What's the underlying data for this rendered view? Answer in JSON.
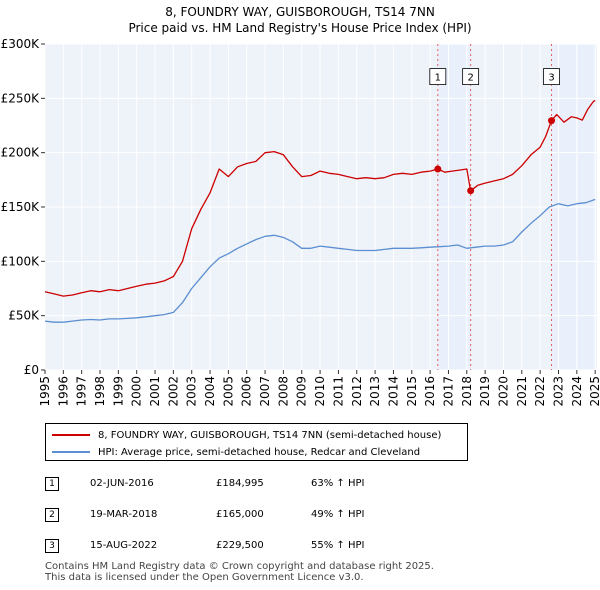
{
  "chart_data": {
    "type": "line",
    "title": "8, FOUNDRY WAY, GUISBOROUGH, TS14 7NN",
    "subtitle": "Price paid vs. HM Land Registry's House Price Index (HPI)",
    "xlabel": "",
    "ylabel": "",
    "xlim": [
      1995.0,
      2025.1
    ],
    "ylim": [
      0,
      300000
    ],
    "x_ticks": [
      "1995",
      "1996",
      "1997",
      "1998",
      "1999",
      "2000",
      "2001",
      "2002",
      "2003",
      "2004",
      "2005",
      "2006",
      "2007",
      "2008",
      "2009",
      "2010",
      "2011",
      "2012",
      "2013",
      "2014",
      "2015",
      "2016",
      "2017",
      "2018",
      "2019",
      "2020",
      "2021",
      "2022",
      "2023",
      "2024",
      "2025"
    ],
    "y_ticks": [
      {
        "value": 0,
        "label": "£0"
      },
      {
        "value": 50000,
        "label": "£50K"
      },
      {
        "value": 100000,
        "label": "£100K"
      },
      {
        "value": 150000,
        "label": "£150K"
      },
      {
        "value": 200000,
        "label": "£200K"
      },
      {
        "value": 250000,
        "label": "£250K"
      },
      {
        "value": 300000,
        "label": "£300K"
      }
    ],
    "grid": true,
    "series": [
      {
        "name": "8, FOUNDRY WAY, GUISBOROUGH, TS14 7NN (semi-detached house)",
        "color": "#cc0000",
        "x": [
          1995.0,
          1995.5,
          1996.0,
          1996.5,
          1997.0,
          1997.5,
          1998.0,
          1998.5,
          1999.0,
          1999.5,
          2000.0,
          2000.5,
          2001.0,
          2001.5,
          2002.0,
          2002.5,
          2003.0,
          2003.5,
          2004.0,
          2004.5,
          2005.0,
          2005.5,
          2006.0,
          2006.5,
          2007.0,
          2007.5,
          2008.0,
          2008.5,
          2009.0,
          2009.5,
          2010.0,
          2010.5,
          2011.0,
          2011.5,
          2012.0,
          2012.5,
          2013.0,
          2013.5,
          2014.0,
          2014.5,
          2015.0,
          2015.5,
          2016.0,
          2016.42,
          2016.8,
          2017.2,
          2017.6,
          2018.0,
          2018.21,
          2018.6,
          2019.0,
          2019.5,
          2020.0,
          2020.5,
          2021.0,
          2021.5,
          2022.0,
          2022.3,
          2022.62,
          2022.9,
          2023.3,
          2023.7,
          2024.0,
          2024.3,
          2024.6,
          2024.9,
          2025.0
        ],
        "values": [
          72000,
          70000,
          68000,
          69000,
          71000,
          73000,
          72000,
          74000,
          73000,
          75000,
          77000,
          79000,
          80000,
          82000,
          86000,
          100000,
          130000,
          148000,
          163000,
          185000,
          178000,
          187000,
          190000,
          192000,
          200000,
          201000,
          198000,
          187000,
          178000,
          179000,
          183000,
          181000,
          180000,
          178000,
          176000,
          177000,
          176000,
          177000,
          180000,
          181000,
          180000,
          182000,
          183000,
          184995,
          182000,
          183000,
          184000,
          185000,
          165000,
          170000,
          172000,
          174000,
          176000,
          180000,
          188000,
          198000,
          205000,
          215000,
          229500,
          235000,
          228000,
          233000,
          232000,
          230000,
          240000,
          247000,
          248000
        ]
      },
      {
        "name": "HPI: Average price, semi-detached house, Redcar and Cleveland",
        "color": "#5b8fd1",
        "x": [
          1995.0,
          1995.5,
          1996.0,
          1996.5,
          1997.0,
          1997.5,
          1998.0,
          1998.5,
          1999.0,
          1999.5,
          2000.0,
          2000.5,
          2001.0,
          2001.5,
          2002.0,
          2002.5,
          2003.0,
          2003.5,
          2004.0,
          2004.5,
          2005.0,
          2005.5,
          2006.0,
          2006.5,
          2007.0,
          2007.5,
          2008.0,
          2008.5,
          2009.0,
          2009.5,
          2010.0,
          2010.5,
          2011.0,
          2011.5,
          2012.0,
          2012.5,
          2013.0,
          2013.5,
          2014.0,
          2014.5,
          2015.0,
          2015.5,
          2016.0,
          2016.5,
          2017.0,
          2017.5,
          2018.0,
          2018.5,
          2019.0,
          2019.5,
          2020.0,
          2020.5,
          2021.0,
          2021.5,
          2022.0,
          2022.5,
          2023.0,
          2023.5,
          2024.0,
          2024.5,
          2025.0
        ],
        "values": [
          45000,
          44000,
          44000,
          45000,
          46000,
          46500,
          46000,
          47000,
          47000,
          47500,
          48000,
          49000,
          50000,
          51000,
          53000,
          62000,
          75000,
          85000,
          95000,
          103000,
          107000,
          112000,
          116000,
          120000,
          123000,
          124000,
          122000,
          118000,
          112000,
          112000,
          114000,
          113000,
          112000,
          111000,
          110000,
          110000,
          110000,
          111000,
          112000,
          112000,
          112000,
          112500,
          113000,
          113500,
          114000,
          115000,
          112000,
          113000,
          114000,
          114000,
          115000,
          118000,
          127000,
          135000,
          142000,
          150000,
          153000,
          151000,
          153000,
          154000,
          157000
        ]
      }
    ],
    "transactions": [
      {
        "label": "1",
        "date": "02-JUN-2016",
        "x": 2016.42,
        "price": "£184,995",
        "value": 184995,
        "hpi_change": "63% ↑ HPI"
      },
      {
        "label": "2",
        "date": "19-MAR-2018",
        "x": 2018.21,
        "price": "£165,000",
        "value": 165000,
        "hpi_change": "49% ↑ HPI"
      },
      {
        "label": "3",
        "date": "15-AUG-2022",
        "x": 2022.62,
        "price": "£229,500",
        "value": 229500,
        "hpi_change": "55% ↑ HPI"
      }
    ],
    "shaded_periods": [
      {
        "from": 2016.42,
        "to": 2018.21
      },
      {
        "from": 2022.62,
        "to": 2025.0
      }
    ],
    "shade_color": "#eaf0fb",
    "marker_label_value": 270000,
    "legend_position": "bottom"
  },
  "legend": {
    "items": [
      {
        "label": "8, FOUNDRY WAY, GUISBOROUGH, TS14 7NN (semi-detached house)",
        "color": "#cc0000"
      },
      {
        "label": "HPI: Average price, semi-detached house, Redcar and Cleveland",
        "color": "#5b8fd1"
      }
    ]
  },
  "footer": {
    "line1": "Contains HM Land Registry data © Crown copyright and database right 2025.",
    "line2": "This data is licensed under the Open Government Licence v3.0."
  }
}
